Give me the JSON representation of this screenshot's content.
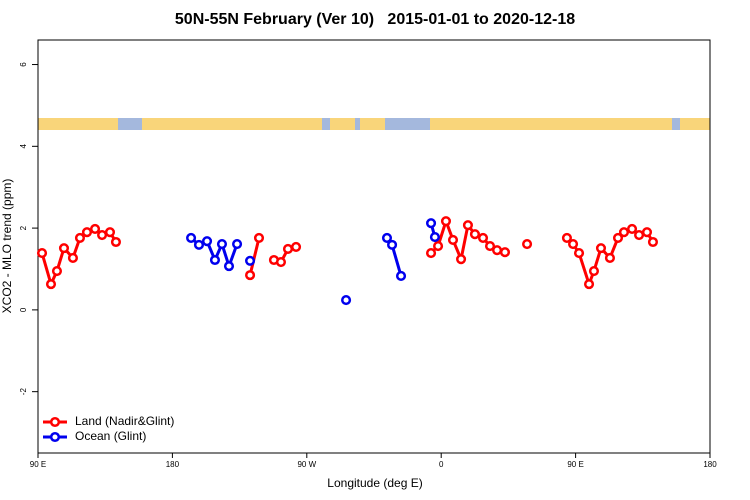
{
  "chart_data": {
    "type": "line",
    "title": "50N-55N February (Ver 10)   2015-01-01 to 2020-12-18",
    "xlabel": "Longitude (deg E)",
    "ylabel": "XCO2 - MLO trend (ppm)",
    "xlim": [
      90,
      540
    ],
    "ylim": [
      -3.5,
      6.6
    ],
    "xticks": [
      {
        "value": 90,
        "label": "90 E"
      },
      180,
      {
        "value": 270,
        "label": "90 W"
      },
      {
        "value": 360,
        "label": "0"
      },
      {
        "value": 450,
        "label": "90 E"
      },
      {
        "value": 540,
        "label": "180"
      }
    ],
    "yticks": [
      -2,
      0,
      2,
      4,
      6
    ],
    "legend": "bottom-left",
    "series": [
      {
        "name": "Land (Nadir&Glint)",
        "color": "#ff0000",
        "x": [
          92.7,
          98.7,
          102.7,
          107.4,
          113.4,
          118.1,
          122.8,
          128.2,
          132.9,
          138.2,
          142.2,
          null,
          232,
          238,
          null,
          248,
          252.7,
          257.4,
          262.8,
          null,
          353.2,
          357.9,
          363.2,
          367.9,
          373.3,
          377.9,
          382.6,
          388,
          392.7,
          397.4,
          402.7,
          null,
          417.5,
          null,
          444.2,
          448.3,
          452.3,
          459,
          462.3,
          467,
          473,
          478.4,
          482.4,
          487.8,
          492.5,
          497.8,
          501.8
        ],
        "values": [
          1.39,
          0.63,
          0.95,
          1.51,
          1.27,
          1.76,
          1.9,
          1.98,
          1.83,
          1.9,
          1.66,
          null,
          0.85,
          1.76,
          null,
          1.22,
          1.17,
          1.49,
          1.54,
          null,
          1.39,
          1.56,
          2.17,
          1.71,
          1.24,
          2.07,
          1.85,
          1.76,
          1.56,
          1.46,
          1.41,
          null,
          1.61,
          null,
          1.76,
          1.61,
          1.39,
          0.63,
          0.95,
          1.51,
          1.27,
          1.76,
          1.9,
          1.98,
          1.83,
          1.9,
          1.66
        ]
      },
      {
        "name": "Ocean (Glint)",
        "color": "#0000ee",
        "x": [
          192.5,
          197.8,
          203.2,
          208.5,
          213.2,
          217.9,
          223.3,
          null,
          232,
          null,
          296.3,
          null,
          323.7,
          327.1,
          333.1,
          null,
          353.2,
          355.8
        ],
        "values": [
          1.76,
          1.59,
          1.68,
          1.22,
          1.61,
          1.07,
          1.61,
          null,
          1.2,
          null,
          0.24,
          null,
          1.76,
          1.59,
          0.83,
          null,
          2.12,
          1.78
        ]
      }
    ]
  }
}
